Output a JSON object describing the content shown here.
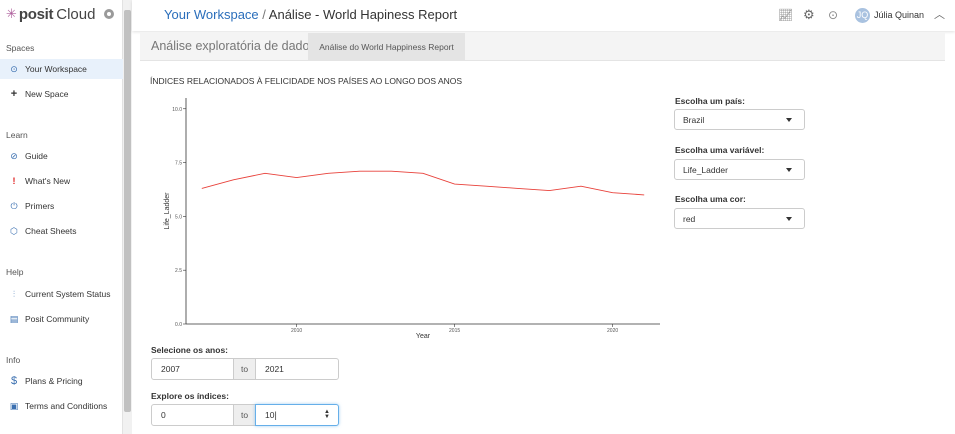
{
  "sidebar": {
    "brand": {
      "logo": "posit",
      "product": "Cloud"
    },
    "sections": {
      "spaces": "Spaces",
      "learn": "Learn",
      "help": "Help",
      "info": "Info"
    },
    "items": {
      "your_workspace": "Your Workspace",
      "new_space": "New Space",
      "guide": "Guide",
      "whats_new": "What's New",
      "primers": "Primers",
      "cheat_sheets": "Cheat Sheets",
      "system_status": "Current System Status",
      "community": "Posit Community",
      "plans": "Plans & Pricing",
      "terms": "Terms and Conditions"
    }
  },
  "header": {
    "workspace_link": "Your Workspace",
    "separator": " / ",
    "project_title": "Análise - World Hapiness Report",
    "user_name": "Júlia Quinan",
    "avatar_initials": "JQ"
  },
  "app": {
    "title": "Análise exploratória de dados",
    "active_tab": "Análise do World Happiness Report",
    "plot_title": "ÍNDICES RELACIONADOS À FELICIDADE NOS PAÍSES AO LONGO DOS ANOS"
  },
  "controls": {
    "country_label": "Escolha um país:",
    "country_value": "Brazil",
    "variable_label": "Escolha uma variável:",
    "variable_value": "Life_Ladder",
    "color_label": "Escolha uma cor:",
    "color_value": "red"
  },
  "years_range": {
    "label": "Selecione os anos:",
    "from": "2007",
    "sep": "to",
    "to": "2021"
  },
  "index_range": {
    "label": "Explore os índices:",
    "from": "0",
    "sep": "to",
    "to": "10"
  },
  "chart_data": {
    "type": "line",
    "xlabel": "Year",
    "ylabel": "Life_Ladder",
    "xlim": [
      2006.5,
      2021.5
    ],
    "ylim": [
      0,
      10.5
    ],
    "xticks": [
      2010,
      2015,
      2020
    ],
    "yticks": [
      0,
      2.5,
      5.0,
      7.5,
      10.0
    ],
    "ytick_labels": [
      "0.0",
      "2.5",
      "5.0",
      "7.5",
      "10.0"
    ],
    "line_color": "#e8413a",
    "grid": false,
    "series": [
      {
        "x": [
          2007,
          2008,
          2009,
          2010,
          2011,
          2012,
          2013,
          2014,
          2015,
          2016,
          2017,
          2018,
          2019,
          2020,
          2021
        ],
        "values": [
          6.3,
          6.7,
          7.0,
          6.8,
          7.0,
          7.1,
          7.1,
          7.0,
          6.5,
          6.4,
          6.3,
          6.2,
          6.4,
          6.1,
          6.0
        ]
      }
    ]
  }
}
